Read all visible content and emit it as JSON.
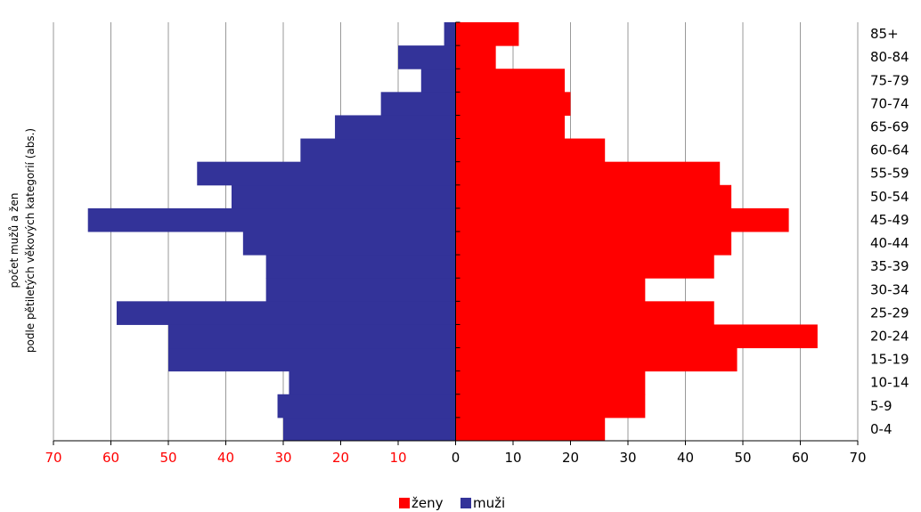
{
  "chart_data": {
    "type": "bar",
    "orientation": "horizontal",
    "categories": [
      "0-4",
      "5-9",
      "10-14",
      "15-19",
      "20-24",
      "25-29",
      "30-34",
      "35-39",
      "40-44",
      "45-49",
      "50-54",
      "55-59",
      "60-64",
      "65-69",
      "70-74",
      "75-79",
      "80-84",
      "85+"
    ],
    "series": [
      {
        "name": "ženy",
        "color": "#ff0000",
        "side": "right",
        "values": [
          26,
          33,
          33,
          49,
          63,
          45,
          33,
          45,
          48,
          58,
          48,
          46,
          26,
          19,
          20,
          19,
          7,
          11
        ]
      },
      {
        "name": "muži",
        "color": "#333399",
        "side": "left",
        "values": [
          30,
          31,
          29,
          50,
          50,
          59,
          33,
          33,
          37,
          64,
          39,
          45,
          27,
          21,
          13,
          6,
          10,
          2
        ]
      }
    ],
    "x_ticks": [
      "70",
      "60",
      "50",
      "40",
      "30",
      "20",
      "10",
      "0",
      "10",
      "20",
      "30",
      "40",
      "50",
      "60",
      "70"
    ],
    "xlim": [
      -70,
      70
    ],
    "ylabel_line1": "počet mužů a žen",
    "ylabel_line2": "podle pětiletých věkových kategorií (abs.)",
    "grid": true,
    "legend_position": "bottom"
  },
  "colors": {
    "left_tick_label": "#ff0000",
    "right_tick_label": "#000000",
    "grid": "#999999",
    "axis": "#000000"
  }
}
